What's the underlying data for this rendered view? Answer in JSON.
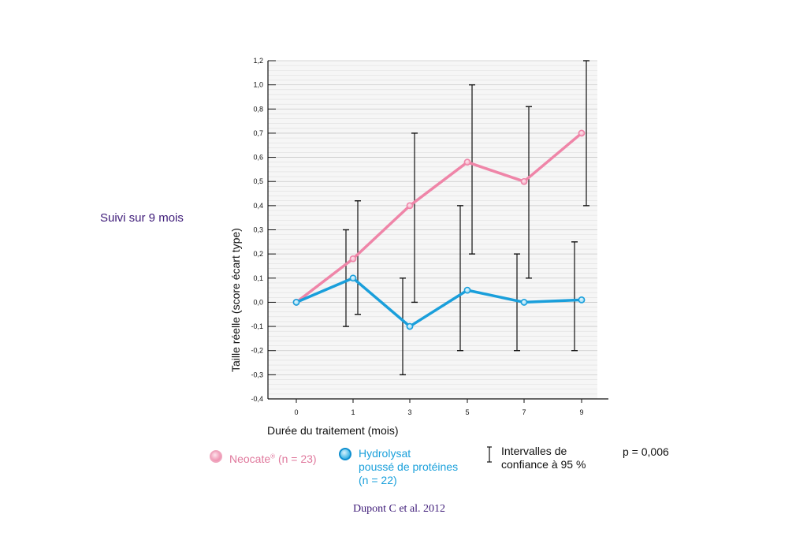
{
  "side_title": "Suivi sur 9 mois",
  "citation": "Dupont C et al. 2012",
  "p_value": "p = 0,006",
  "legend": {
    "neocate_name": "Neocate",
    "neocate_sup": "®",
    "neocate_n": " (n = 23)",
    "hydro_lines": [
      "Hydrolysat",
      "poussé de protéines",
      "(n = 22)"
    ],
    "ci_lines": [
      "Intervalles de",
      "confiance à 95 %"
    ]
  },
  "chart_data": {
    "type": "line",
    "xlabel": "Durée du traitement (mois)",
    "ylabel": "Taille réelle (score écart type)",
    "categories": [
      "0",
      "1",
      "3",
      "5",
      "7",
      "9"
    ],
    "ylim": [
      -0.4,
      1.2
    ],
    "y_ticks": [
      1.2,
      1.0,
      0.8,
      0.7,
      0.6,
      0.5,
      0.4,
      0.3,
      0.2,
      0.1,
      0.0,
      -0.1,
      -0.2,
      -0.3,
      -0.4
    ],
    "y_tick_labels": [
      "1,2",
      "1,0",
      "0,8",
      "0,7",
      "0,6",
      "0,5",
      "0,4",
      "0,3",
      "0,2",
      "0,1",
      "0,0",
      "-0,1",
      "-0,2",
      "-0,3",
      "-0,4"
    ],
    "grid": true,
    "series": [
      {
        "name": "Neocate® (n = 23)",
        "color": "#ef85a8",
        "values": [
          0.0,
          0.18,
          0.4,
          0.58,
          0.5,
          0.7
        ],
        "ci": [
          null,
          [
            -0.05,
            0.42
          ],
          [
            0.0,
            0.7
          ],
          [
            0.2,
            1.0
          ],
          [
            0.1,
            0.82
          ],
          [
            0.4,
            1.2
          ]
        ]
      },
      {
        "name": "Hydrolysat poussé de protéines (n = 22)",
        "color": "#1a9fdb",
        "values": [
          0.0,
          0.1,
          -0.1,
          0.05,
          0.0,
          0.01
        ],
        "ci": [
          null,
          [
            -0.1,
            0.3
          ],
          [
            -0.3,
            0.1
          ],
          [
            -0.2,
            0.4
          ],
          [
            -0.2,
            0.2
          ],
          [
            -0.2,
            0.25
          ]
        ]
      }
    ]
  }
}
